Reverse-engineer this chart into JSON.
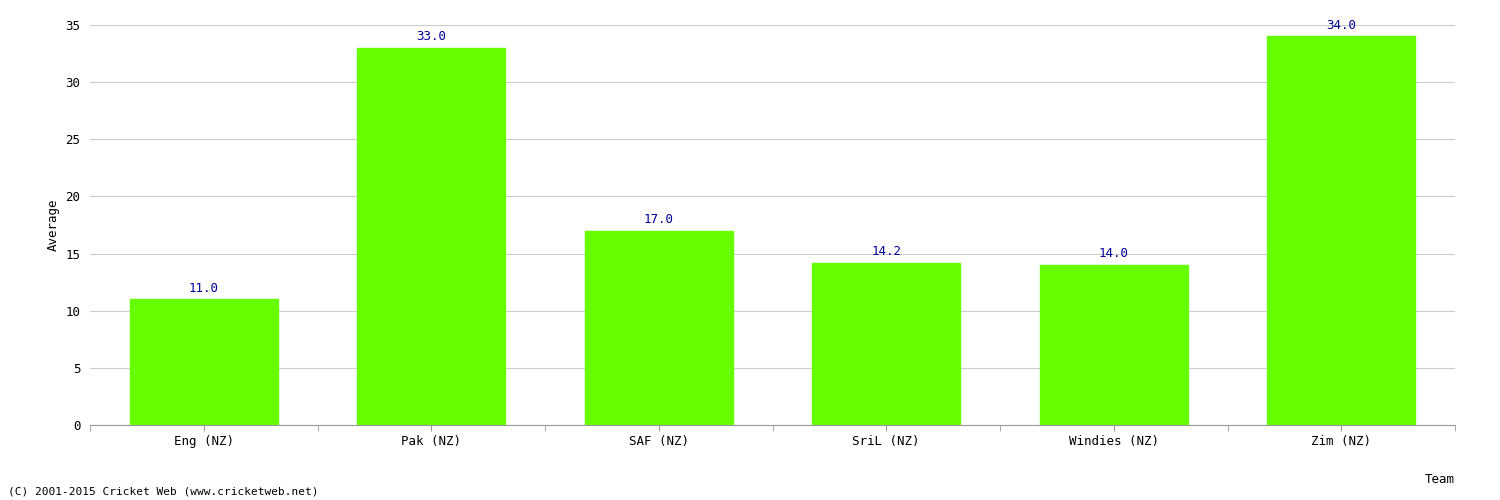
{
  "categories": [
    "Eng (NZ)",
    "Pak (NZ)",
    "SAF (NZ)",
    "SriL (NZ)",
    "Windies (NZ)",
    "Zim (NZ)"
  ],
  "values": [
    11.0,
    33.0,
    17.0,
    14.2,
    14.0,
    34.0
  ],
  "bar_color": "#66ff00",
  "label_color": "#000099",
  "xlabel": "Team",
  "ylabel": "Average",
  "ylim": [
    0,
    35
  ],
  "yticks": [
    0,
    5,
    10,
    15,
    20,
    25,
    30,
    35
  ],
  "bg_color": "#ffffff",
  "grid_color": "#cccccc",
  "footer": "(C) 2001-2015 Cricket Web (www.cricketweb.net)",
  "label_fontsize": 9,
  "axis_fontsize": 9,
  "footer_fontsize": 8,
  "bar_width": 0.65
}
